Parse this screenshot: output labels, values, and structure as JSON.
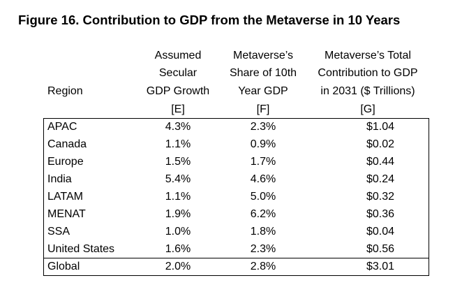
{
  "title": "Figure 16. Contribution to GDP from the Metaverse in 10 Years",
  "table": {
    "region_header": "Region",
    "columns": [
      {
        "lines": [
          "Assumed",
          "Secular",
          "GDP Growth",
          "[E]"
        ]
      },
      {
        "lines": [
          "Metaverse’s",
          "Share of 10th",
          "Year GDP",
          "[F]"
        ]
      },
      {
        "lines": [
          "Metaverse’s Total",
          "Contribution to GDP",
          "in 2031 ($ Trillions)",
          "[G]"
        ]
      }
    ],
    "rows": [
      [
        "APAC",
        "4.3%",
        "2.3%",
        "$1.04"
      ],
      [
        "Canada",
        "1.1%",
        "0.9%",
        "$0.02"
      ],
      [
        "Europe",
        "1.5%",
        "1.7%",
        "$0.44"
      ],
      [
        "India",
        "5.4%",
        "4.6%",
        "$0.24"
      ],
      [
        "LATAM",
        "1.1%",
        "5.0%",
        "$0.32"
      ],
      [
        "MENAT",
        "1.9%",
        "6.2%",
        "$0.36"
      ],
      [
        "SSA",
        "1.0%",
        "1.8%",
        "$0.04"
      ],
      [
        "United States",
        "1.6%",
        "2.3%",
        "$0.56"
      ]
    ],
    "total_row": [
      "Global",
      "2.0%",
      "2.8%",
      "$3.01"
    ]
  }
}
